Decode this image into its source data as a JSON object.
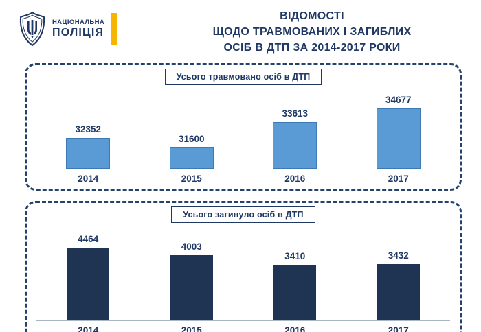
{
  "header": {
    "logo": {
      "line1": "НАЦІОНАЛЬНА",
      "line2": "ПОЛІЦІЯ"
    },
    "title_lines": [
      "ВІДОМОСТІ",
      "ЩОДО ТРАВМОВАНИХ І ЗАГИБЛИХ",
      "ОСІБ В ДТП ЗА 2014-2017 РОКИ"
    ]
  },
  "colors": {
    "navy": "#1F3864",
    "yellow": "#F7B500",
    "light_blue_bar": "#5B9BD5",
    "dark_navy_bar": "#1F3353",
    "baseline": "#A8B6C6"
  },
  "chart_data": [
    {
      "type": "bar",
      "title": "Усього травмовано осіб в ДТП",
      "categories": [
        "2014",
        "2015",
        "2016",
        "2017"
      ],
      "values": [
        32352,
        31600,
        33613,
        34677
      ],
      "ylim": [
        30000,
        35000
      ],
      "bar_color": "#5B9BD5",
      "bar_border": "#3D7AB5",
      "legend": "none",
      "grid": false
    },
    {
      "type": "bar",
      "title": "Усього загинуло осіб в ДТП",
      "categories": [
        "2014",
        "2015",
        "2016",
        "2017"
      ],
      "values": [
        4464,
        4003,
        3410,
        3432
      ],
      "ylim": [
        0,
        4700
      ],
      "bar_color": "#1F3353",
      "bar_border": "",
      "legend": "none",
      "grid": false
    }
  ]
}
